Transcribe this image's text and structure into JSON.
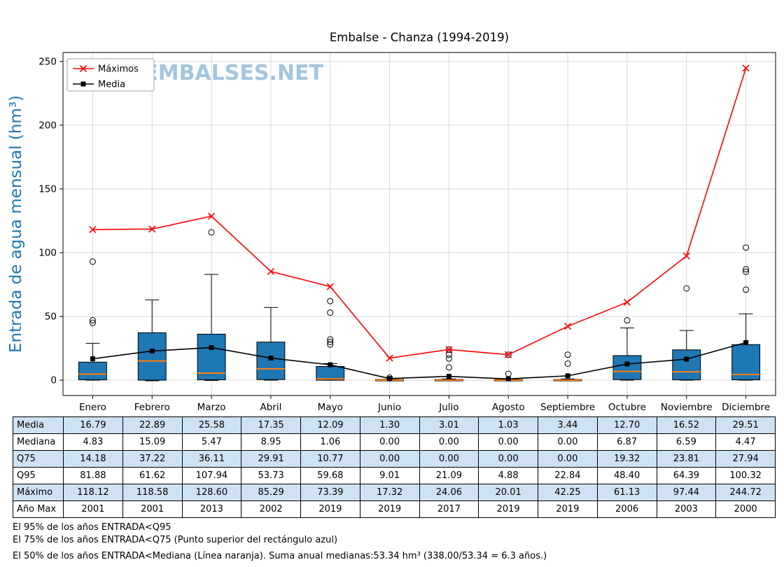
{
  "watermark": "WWW.EMBALSES.NET",
  "chart_data": {
    "type": "boxplot",
    "title": "Embalse - Chanza (1994-2019)",
    "ylabel": "Entrada de agua mensual (hm³)",
    "ylim": [
      -12,
      257
    ],
    "yticks": [
      0,
      50,
      100,
      150,
      200,
      250
    ],
    "grid": true,
    "colors": {
      "box": "#1f77b4",
      "median": "#ff7f0e",
      "max_line": "#ff0000",
      "mean_line": "#000000",
      "ylabel": "#1f77b4",
      "watermark": "#a3c6de",
      "gridline": "#d9d9d9",
      "table_shade": "#cfe2f3"
    },
    "categories": [
      "Enero",
      "Febrero",
      "Marzo",
      "Abril",
      "Mayo",
      "Junio",
      "Julio",
      "Agosto",
      "Septiembre",
      "Octubre",
      "Noviembre",
      "Diciembre"
    ],
    "legend": {
      "position": "top-left",
      "entries": [
        {
          "label": "Máximos",
          "color": "#ff0000",
          "marker": "x"
        },
        {
          "label": "Media",
          "color": "#000000",
          "marker": "square"
        }
      ]
    },
    "series": [
      {
        "name": "Máximos",
        "type": "line",
        "color": "#ff0000",
        "marker": "x",
        "values": [
          118.12,
          118.58,
          128.6,
          85.29,
          73.39,
          17.32,
          24.06,
          20.01,
          42.25,
          61.13,
          97.44,
          244.72
        ]
      },
      {
        "name": "Media",
        "type": "line",
        "color": "#000000",
        "marker": "square",
        "values": [
          16.79,
          22.89,
          25.58,
          17.35,
          12.09,
          1.3,
          3.01,
          1.03,
          3.44,
          12.7,
          16.52,
          29.51
        ]
      }
    ],
    "boxes": {
      "q1": [
        0.3,
        0,
        0.3,
        0.5,
        0,
        0,
        0,
        0,
        0,
        0.5,
        0.3,
        0.3
      ],
      "median": [
        4.83,
        15.09,
        5.47,
        8.95,
        1.06,
        0,
        0,
        0,
        0,
        6.87,
        6.59,
        4.47
      ],
      "q3": [
        14.18,
        37.22,
        36.11,
        29.91,
        10.77,
        0,
        0,
        0,
        0,
        19.32,
        23.81,
        27.94
      ],
      "whisker_low": [
        0,
        -0.5,
        -0.2,
        0,
        0,
        0,
        0,
        0,
        0,
        0,
        0,
        0
      ],
      "whisker_high": [
        29,
        63,
        83,
        57,
        13,
        0.5,
        1,
        0.5,
        1,
        41,
        39,
        52
      ],
      "outliers": [
        [
          45,
          47,
          93
        ],
        [],
        [
          116
        ],
        [],
        [
          28,
          30,
          32,
          53,
          62
        ],
        [
          2
        ],
        [
          10,
          17,
          20,
          24
        ],
        [
          5,
          20
        ],
        [
          13,
          20
        ],
        [
          47
        ],
        [
          72
        ],
        [
          71,
          85,
          87,
          104
        ]
      ]
    },
    "table": {
      "row_labels": [
        "Media",
        "Mediana",
        "Q75",
        "Q95",
        "Máximo",
        "Año Max"
      ],
      "rows": [
        [
          "16.79",
          "22.89",
          "25.58",
          "17.35",
          "12.09",
          "1.30",
          "3.01",
          "1.03",
          "3.44",
          "12.70",
          "16.52",
          "29.51"
        ],
        [
          "4.83",
          "15.09",
          "5.47",
          "8.95",
          "1.06",
          "0.00",
          "0.00",
          "0.00",
          "0.00",
          "6.87",
          "6.59",
          "4.47"
        ],
        [
          "14.18",
          "37.22",
          "36.11",
          "29.91",
          "10.77",
          "0.00",
          "0.00",
          "0.00",
          "0.00",
          "19.32",
          "23.81",
          "27.94"
        ],
        [
          "81.88",
          "61.62",
          "107.94",
          "53.73",
          "59.68",
          "9.01",
          "21.09",
          "4.88",
          "22.84",
          "48.40",
          "64.39",
          "100.32"
        ],
        [
          "118.12",
          "118.58",
          "128.60",
          "85.29",
          "73.39",
          "17.32",
          "24.06",
          "20.01",
          "42.25",
          "61.13",
          "97.44",
          "244.72"
        ],
        [
          "2001",
          "2001",
          "2013",
          "2002",
          "2019",
          "2019",
          "2017",
          "2019",
          "2019",
          "2006",
          "2003",
          "2000"
        ]
      ]
    }
  },
  "footnotes": [
    "El 95% de los años ENTRADA<Q95",
    "El 75% de los años ENTRADA<Q75 (Punto superior del rectángulo azul)",
    "El 50% de los años ENTRADA<Mediana (Línea naranja). Suma anual medianas:53.34 hm³ (338.00/53.34 = 6.3 años.)"
  ]
}
